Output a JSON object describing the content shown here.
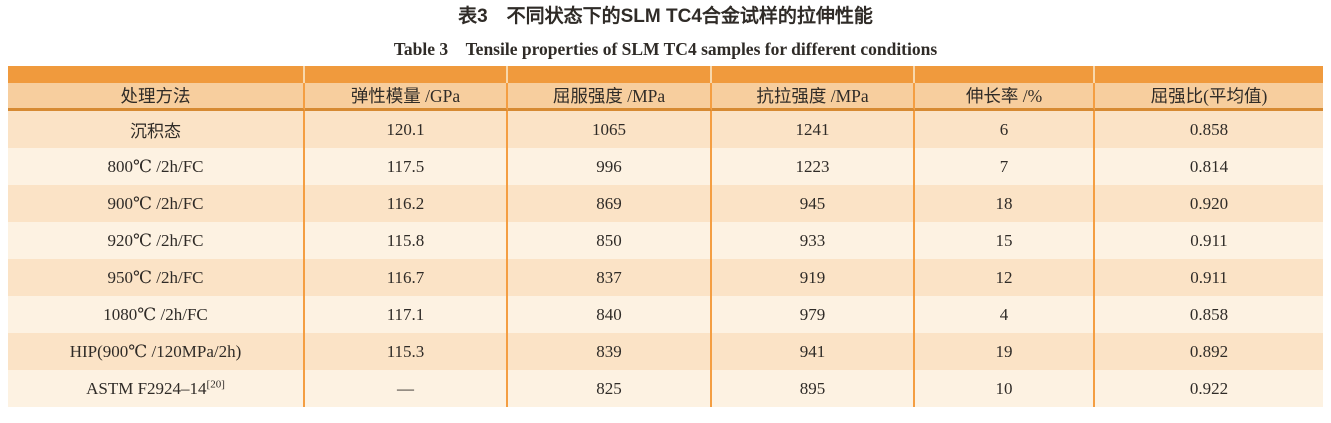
{
  "captions": {
    "zh": "表3　不同状态下的SLM TC4合金试样的拉伸性能",
    "en": "Table 3　Tensile properties of SLM TC4 samples for different conditions"
  },
  "colors": {
    "top_bar": "#f09a3d",
    "accent_gap": "#f8d8ac",
    "header_bg": "#f7ce9e",
    "header_rule": "#d68a33",
    "row_odd": "#fbe3c6",
    "row_even": "#fdf2e2",
    "grid_line": "#f49e42",
    "text": "#2f2b27"
  },
  "table": {
    "headers": [
      "处理方法",
      "弹性模量 /GPa",
      "屈服强度 /MPa",
      "抗拉强度 /MPa",
      "伸长率 /%",
      "屈强比(平均值)"
    ],
    "column_keys": [
      "method",
      "elastic-modulus",
      "yield-strength",
      "tensile-strength",
      "elongation",
      "yield-ratio"
    ],
    "rows": [
      {
        "method": "沉积态",
        "method_sup": "",
        "values": [
          "120.1",
          "1065",
          "1241",
          "6",
          "0.858"
        ]
      },
      {
        "method": "800℃ /2h/FC",
        "method_sup": "",
        "values": [
          "117.5",
          "996",
          "1223",
          "7",
          "0.814"
        ]
      },
      {
        "method": "900℃ /2h/FC",
        "method_sup": "",
        "values": [
          "116.2",
          "869",
          "945",
          "18",
          "0.920"
        ]
      },
      {
        "method": "920℃ /2h/FC",
        "method_sup": "",
        "values": [
          "115.8",
          "850",
          "933",
          "15",
          "0.911"
        ]
      },
      {
        "method": "950℃ /2h/FC",
        "method_sup": "",
        "values": [
          "116.7",
          "837",
          "919",
          "12",
          "0.911"
        ]
      },
      {
        "method": "1080℃ /2h/FC",
        "method_sup": "",
        "values": [
          "117.1",
          "840",
          "979",
          "4",
          "0.858"
        ]
      },
      {
        "method": "HIP(900℃ /120MPa/2h)",
        "method_sup": "",
        "values": [
          "115.3",
          "839",
          "941",
          "19",
          "0.892"
        ]
      },
      {
        "method": "ASTM F2924–14",
        "method_sup": "[20]",
        "values": [
          "—",
          "825",
          "895",
          "10",
          "0.922"
        ]
      }
    ]
  }
}
